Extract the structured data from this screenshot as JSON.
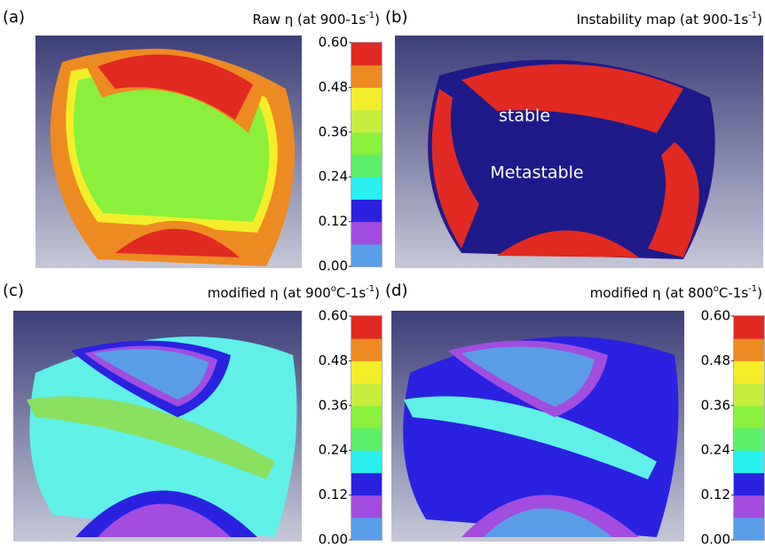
{
  "colorbar": {
    "lim": [
      0,
      0.6
    ],
    "colors": [
      "#5a9ee8",
      "#a24de0",
      "#2a22e0",
      "#2af0f0",
      "#5cf06a",
      "#8af03c",
      "#c6ec3e",
      "#f4ee2a",
      "#ee8a22",
      "#e02a22"
    ],
    "ticks": [
      {
        "value": 0.6,
        "label": "0.60"
      },
      {
        "value": 0.48,
        "label": "0.48"
      },
      {
        "value": 0.36,
        "label": "0.36"
      },
      {
        "value": 0.24,
        "label": "0.24"
      },
      {
        "value": 0.12,
        "label": "0.12"
      },
      {
        "value": 0,
        "label": "0.00"
      }
    ]
  },
  "panels": [
    {
      "label": "(a)",
      "title": [
        "Raw η (at 900-1s",
        "-1",
        ")"
      ]
    },
    {
      "label": "(b)",
      "title": [
        "Instability map (at 900-1s",
        "-1",
        ")"
      ],
      "annotations": [
        "stable",
        "Metastable"
      ]
    },
    {
      "label": "(c)",
      "title": [
        "modified η (at 900",
        "o",
        "C-1s",
        "-1",
        ")"
      ]
    },
    {
      "label": "(d)",
      "title": [
        "modified η (at 800",
        "o",
        "C-1s",
        "-1",
        ")"
      ]
    }
  ]
}
